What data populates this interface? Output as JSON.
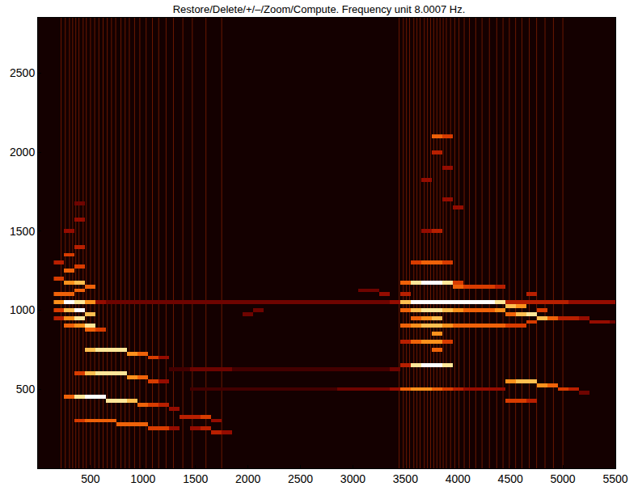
{
  "chart_data": {
    "type": "heatmap",
    "title": "Restore/Delete/+/–/Zoom/Compute. Frequency unit 8.0007 Hz.",
    "xlim": [
      0,
      5500
    ],
    "ylim": [
      0,
      2850
    ],
    "xticks": [
      500,
      1000,
      1500,
      2000,
      2500,
      3000,
      3500,
      4000,
      4500,
      5000,
      5500
    ],
    "yticks": [
      500,
      1000,
      1500,
      2000,
      2500
    ],
    "grid": false,
    "zlim": [
      0,
      10
    ],
    "cells": [
      [
        200,
        1300,
        4
      ],
      [
        200,
        1200,
        5
      ],
      [
        200,
        1100,
        6
      ],
      [
        200,
        1050,
        7
      ],
      [
        200,
        1000,
        5
      ],
      [
        200,
        950,
        4
      ],
      [
        300,
        1500,
        3
      ],
      [
        300,
        1350,
        5
      ],
      [
        300,
        1250,
        6
      ],
      [
        300,
        1175,
        7
      ],
      [
        300,
        1100,
        6
      ],
      [
        300,
        1050,
        10
      ],
      [
        300,
        1000,
        8
      ],
      [
        300,
        950,
        7
      ],
      [
        300,
        900,
        6
      ],
      [
        300,
        450,
        6
      ],
      [
        400,
        1675,
        2
      ],
      [
        400,
        1575,
        3
      ],
      [
        400,
        1400,
        4
      ],
      [
        400,
        1275,
        5
      ],
      [
        400,
        1175,
        8
      ],
      [
        400,
        1125,
        6
      ],
      [
        400,
        1050,
        9
      ],
      [
        400,
        1000,
        10
      ],
      [
        400,
        950,
        9
      ],
      [
        400,
        900,
        7
      ],
      [
        400,
        600,
        5
      ],
      [
        400,
        450,
        9
      ],
      [
        400,
        300,
        5
      ],
      [
        500,
        1150,
        6
      ],
      [
        500,
        1050,
        7
      ],
      [
        500,
        975,
        8
      ],
      [
        500,
        900,
        9
      ],
      [
        500,
        875,
        6
      ],
      [
        500,
        750,
        8
      ],
      [
        500,
        600,
        8
      ],
      [
        500,
        450,
        10
      ],
      [
        500,
        300,
        6
      ],
      [
        600,
        1050,
        3
      ],
      [
        600,
        875,
        5
      ],
      [
        600,
        750,
        9
      ],
      [
        600,
        600,
        9
      ],
      [
        600,
        450,
        10
      ],
      [
        600,
        300,
        6
      ],
      [
        700,
        750,
        9
      ],
      [
        700,
        600,
        9
      ],
      [
        700,
        425,
        9
      ],
      [
        700,
        300,
        6
      ],
      [
        800,
        750,
        9
      ],
      [
        800,
        600,
        9
      ],
      [
        800,
        425,
        9
      ],
      [
        800,
        275,
        6
      ],
      [
        900,
        725,
        7
      ],
      [
        900,
        575,
        7
      ],
      [
        900,
        425,
        8
      ],
      [
        900,
        275,
        6
      ],
      [
        1000,
        725,
        6
      ],
      [
        1000,
        575,
        6
      ],
      [
        1000,
        400,
        6
      ],
      [
        1000,
        275,
        6
      ],
      [
        1100,
        700,
        5
      ],
      [
        1100,
        550,
        5
      ],
      [
        1100,
        400,
        5
      ],
      [
        1100,
        250,
        5
      ],
      [
        1200,
        700,
        3
      ],
      [
        1200,
        550,
        3
      ],
      [
        1200,
        400,
        4
      ],
      [
        1200,
        250,
        5
      ],
      [
        1300,
        375,
        3
      ],
      [
        1300,
        250,
        3
      ],
      [
        1400,
        325,
        4
      ],
      [
        1500,
        325,
        4
      ],
      [
        1600,
        325,
        5
      ],
      [
        1700,
        300,
        3
      ],
      [
        1500,
        250,
        3
      ],
      [
        1600,
        250,
        4
      ],
      [
        1700,
        225,
        4
      ],
      [
        1800,
        225,
        3
      ],
      [
        700,
        1050,
        2
      ],
      [
        800,
        1050,
        2
      ],
      [
        900,
        1050,
        2
      ],
      [
        1000,
        1050,
        2
      ],
      [
        1100,
        1050,
        2
      ],
      [
        1200,
        1050,
        2
      ],
      [
        1300,
        1050,
        2
      ],
      [
        1400,
        1050,
        2
      ],
      [
        1500,
        1050,
        2
      ],
      [
        1600,
        1050,
        2
      ],
      [
        1700,
        1050,
        2
      ],
      [
        1800,
        1050,
        2
      ],
      [
        1900,
        1050,
        2
      ],
      [
        2000,
        1050,
        2
      ],
      [
        2100,
        1050,
        2
      ],
      [
        2200,
        1050,
        2
      ],
      [
        2300,
        1050,
        2
      ],
      [
        2400,
        1050,
        2
      ],
      [
        2500,
        1050,
        2
      ],
      [
        2600,
        1050,
        2
      ],
      [
        2700,
        1050,
        2
      ],
      [
        2800,
        1050,
        2
      ],
      [
        2900,
        1050,
        2
      ],
      [
        3000,
        1050,
        2
      ],
      [
        3100,
        1050,
        2
      ],
      [
        3200,
        1050,
        2
      ],
      [
        3300,
        1050,
        2
      ],
      [
        3400,
        1050,
        3
      ],
      [
        1300,
        625,
        1
      ],
      [
        1400,
        625,
        1
      ],
      [
        1500,
        625,
        2
      ],
      [
        1600,
        625,
        2
      ],
      [
        1700,
        625,
        2
      ],
      [
        1800,
        625,
        2
      ],
      [
        1900,
        625,
        1
      ],
      [
        2000,
        625,
        1
      ],
      [
        2100,
        625,
        1
      ],
      [
        2200,
        625,
        1
      ],
      [
        2300,
        625,
        1
      ],
      [
        2400,
        625,
        1
      ],
      [
        2500,
        625,
        1
      ],
      [
        2600,
        625,
        1
      ],
      [
        2700,
        625,
        1
      ],
      [
        2800,
        625,
        1
      ],
      [
        2900,
        625,
        1
      ],
      [
        3000,
        625,
        1
      ],
      [
        3100,
        625,
        1
      ],
      [
        3200,
        625,
        1
      ],
      [
        3300,
        625,
        1
      ],
      [
        3400,
        625,
        2
      ],
      [
        1500,
        500,
        1
      ],
      [
        1600,
        500,
        1
      ],
      [
        1700,
        500,
        1
      ],
      [
        1800,
        500,
        1
      ],
      [
        1900,
        500,
        1
      ],
      [
        2000,
        500,
        1
      ],
      [
        2100,
        500,
        1
      ],
      [
        2200,
        500,
        1
      ],
      [
        2300,
        500,
        1
      ],
      [
        2400,
        500,
        1
      ],
      [
        2500,
        500,
        1
      ],
      [
        2600,
        500,
        1
      ],
      [
        2700,
        500,
        1
      ],
      [
        2800,
        500,
        1
      ],
      [
        2900,
        500,
        2
      ],
      [
        3000,
        500,
        2
      ],
      [
        3100,
        500,
        2
      ],
      [
        3200,
        500,
        2
      ],
      [
        3300,
        500,
        2
      ],
      [
        3400,
        500,
        3
      ],
      [
        2000,
        975,
        2
      ],
      [
        2100,
        1000,
        2
      ],
      [
        3100,
        1125,
        2
      ],
      [
        3200,
        1125,
        2
      ],
      [
        3300,
        1100,
        3
      ],
      [
        3500,
        1175,
        6
      ],
      [
        3500,
        1100,
        4
      ],
      [
        3500,
        1050,
        8
      ],
      [
        3500,
        1000,
        6
      ],
      [
        3500,
        900,
        6
      ],
      [
        3500,
        800,
        4
      ],
      [
        3500,
        650,
        4
      ],
      [
        3500,
        500,
        6
      ],
      [
        3600,
        1300,
        5
      ],
      [
        3600,
        1175,
        9
      ],
      [
        3600,
        1050,
        10
      ],
      [
        3600,
        1000,
        8
      ],
      [
        3600,
        950,
        6
      ],
      [
        3600,
        900,
        7
      ],
      [
        3600,
        800,
        6
      ],
      [
        3600,
        650,
        9
      ],
      [
        3600,
        500,
        7
      ],
      [
        3700,
        1825,
        3
      ],
      [
        3700,
        1500,
        3
      ],
      [
        3700,
        1300,
        6
      ],
      [
        3700,
        1175,
        10
      ],
      [
        3700,
        1050,
        10
      ],
      [
        3700,
        1000,
        9
      ],
      [
        3700,
        950,
        7
      ],
      [
        3700,
        900,
        8
      ],
      [
        3700,
        800,
        7
      ],
      [
        3700,
        650,
        10
      ],
      [
        3700,
        500,
        7
      ],
      [
        3800,
        2100,
        6
      ],
      [
        3800,
        2000,
        4
      ],
      [
        3800,
        1500,
        4
      ],
      [
        3800,
        1300,
        6
      ],
      [
        3800,
        1175,
        10
      ],
      [
        3800,
        1050,
        10
      ],
      [
        3800,
        1000,
        9
      ],
      [
        3800,
        950,
        8
      ],
      [
        3800,
        900,
        8
      ],
      [
        3800,
        850,
        7
      ],
      [
        3800,
        800,
        7
      ],
      [
        3800,
        750,
        6
      ],
      [
        3800,
        650,
        10
      ],
      [
        3800,
        500,
        6
      ],
      [
        3900,
        2100,
        5
      ],
      [
        3900,
        1900,
        3
      ],
      [
        3900,
        1700,
        3
      ],
      [
        3900,
        1300,
        5
      ],
      [
        3900,
        1175,
        9
      ],
      [
        3900,
        1050,
        10
      ],
      [
        3900,
        1000,
        8
      ],
      [
        3900,
        900,
        7
      ],
      [
        3900,
        800,
        5
      ],
      [
        3900,
        650,
        9
      ],
      [
        3900,
        500,
        5
      ],
      [
        4000,
        1650,
        3
      ],
      [
        4000,
        1175,
        5
      ],
      [
        4000,
        1150,
        6
      ],
      [
        4000,
        1050,
        10
      ],
      [
        4000,
        1000,
        7
      ],
      [
        4000,
        900,
        6
      ],
      [
        4000,
        500,
        4
      ],
      [
        4100,
        1150,
        5
      ],
      [
        4100,
        1050,
        10
      ],
      [
        4100,
        1000,
        6
      ],
      [
        4100,
        900,
        6
      ],
      [
        4100,
        500,
        3
      ],
      [
        4200,
        1150,
        5
      ],
      [
        4200,
        1050,
        10
      ],
      [
        4200,
        1000,
        6
      ],
      [
        4200,
        900,
        6
      ],
      [
        4200,
        500,
        3
      ],
      [
        4300,
        1150,
        5
      ],
      [
        4300,
        1050,
        10
      ],
      [
        4300,
        1000,
        6
      ],
      [
        4300,
        900,
        6
      ],
      [
        4300,
        500,
        3
      ],
      [
        4400,
        1150,
        4
      ],
      [
        4400,
        1050,
        9
      ],
      [
        4400,
        1000,
        7
      ],
      [
        4400,
        900,
        6
      ],
      [
        4400,
        500,
        3
      ],
      [
        4500,
        1050,
        4
      ],
      [
        4500,
        1025,
        8
      ],
      [
        4500,
        975,
        6
      ],
      [
        4500,
        900,
        5
      ],
      [
        4500,
        550,
        7
      ],
      [
        4500,
        425,
        5
      ],
      [
        4600,
        1050,
        4
      ],
      [
        4600,
        1025,
        7
      ],
      [
        4600,
        975,
        8
      ],
      [
        4600,
        900,
        5
      ],
      [
        4600,
        550,
        8
      ],
      [
        4600,
        425,
        5
      ],
      [
        4700,
        1100,
        4
      ],
      [
        4700,
        1050,
        4
      ],
      [
        4700,
        975,
        9
      ],
      [
        4700,
        925,
        5
      ],
      [
        4700,
        550,
        8
      ],
      [
        4700,
        425,
        4
      ],
      [
        4800,
        1050,
        4
      ],
      [
        4800,
        1000,
        5
      ],
      [
        4800,
        950,
        8
      ],
      [
        4800,
        525,
        7
      ],
      [
        4900,
        1050,
        4
      ],
      [
        4900,
        950,
        6
      ],
      [
        4900,
        525,
        6
      ],
      [
        5000,
        1050,
        4
      ],
      [
        5000,
        950,
        4
      ],
      [
        5000,
        500,
        5
      ],
      [
        5100,
        1050,
        3
      ],
      [
        5100,
        950,
        4
      ],
      [
        5100,
        500,
        4
      ],
      [
        5200,
        1050,
        3
      ],
      [
        5200,
        950,
        3
      ],
      [
        5200,
        475,
        2
      ],
      [
        5300,
        1050,
        3
      ],
      [
        5300,
        925,
        3
      ],
      [
        5400,
        1050,
        3
      ],
      [
        5400,
        925,
        3
      ],
      [
        5500,
        1050,
        3
      ],
      [
        5500,
        925,
        2
      ]
    ],
    "stripes": [
      220,
      260,
      300,
      330,
      360,
      390,
      430,
      460,
      500,
      540,
      580,
      620,
      660,
      700,
      740,
      790,
      830,
      870,
      920,
      970,
      1030,
      1090,
      1150,
      1220,
      1290,
      1380,
      1470,
      1600,
      1750,
      3440,
      3480,
      3510,
      3540,
      3580,
      3610,
      3640,
      3680,
      3710,
      3740,
      3770,
      3800,
      3830,
      3860,
      3890,
      3930,
      3970,
      4010,
      4060,
      4110,
      4170,
      4230,
      4300,
      4370,
      4430,
      4490,
      4550,
      4610,
      4680,
      4750,
      4830,
      4910,
      5000
    ]
  }
}
